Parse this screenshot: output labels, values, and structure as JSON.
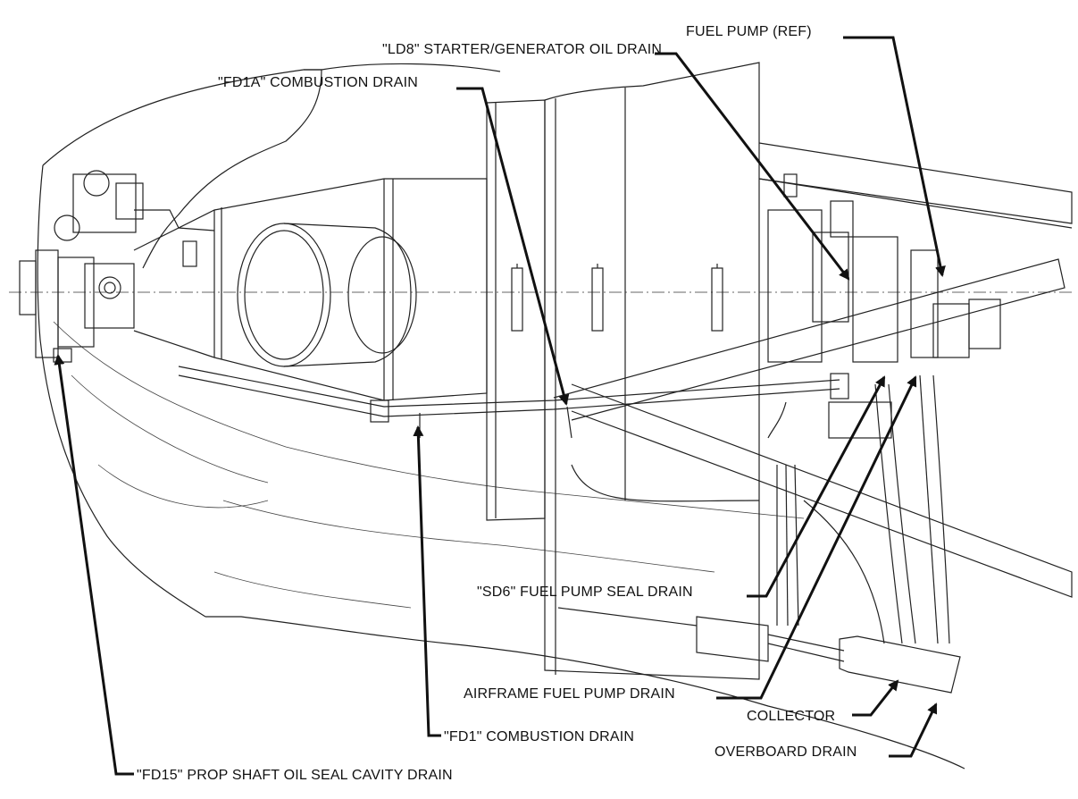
{
  "callouts": {
    "fuel_pump_ref": "FUEL PUMP (REF)",
    "ld8": "\"LD8\" STARTER/GENERATOR OIL DRAIN",
    "fd1a": "\"FD1A\" COMBUSTION DRAIN",
    "sd6": "\"SD6\" FUEL PUMP SEAL DRAIN",
    "airframe_fuel_pump_drain": "AIRFRAME FUEL PUMP DRAIN",
    "collector": "COLLECTOR",
    "fd1": "\"FD1\" COMBUSTION DRAIN",
    "overboard_drain": "OVERBOARD DRAIN",
    "fd15": "\"FD15\" PROP SHAFT OIL SEAL CAVITY DRAIN"
  }
}
